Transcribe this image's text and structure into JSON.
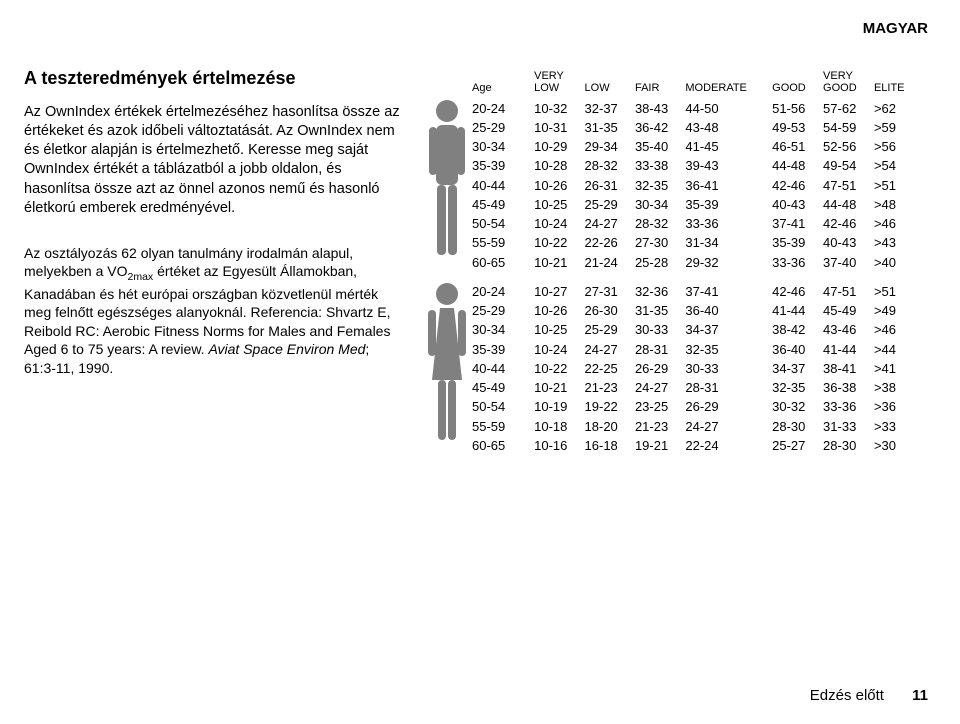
{
  "lang_header": "MAGYAR",
  "title": "A teszteredmények értelmezése",
  "para1": "Az OwnIndex értékek értelmezéséhez hasonlítsa össze az értékeket és azok időbeli változtatását. Az OwnIndex nem és életkor alapján is értelmezhető. Keresse meg saját OwnIndex értékét a táblázatból a jobb oldalon, és hasonlítsa össze azt az önnel azonos nemű és hasonló életkorú emberek eredményével.",
  "para2_a": "Az osztályozás 62 olyan tanulmány irodalmán alapul, melyekben a VO",
  "para2_sub": "2max",
  "para2_b": " értéket az Egyesült Államokban, Kanadában és hét európai országban közvetlenül mérték meg felnőtt egészséges alanyoknál. Referencia: Shvartz E, Reibold RC: Aerobic Fitness Norms for Males and Females Aged 6 to 75 years: A review. ",
  "para2_i": "Aviat Space Environ Med",
  "para2_c": "; 61:3-11, 1990.",
  "headers": [
    "Age",
    "VERY\nLOW",
    "LOW",
    "FAIR",
    "MODERATE",
    "GOOD",
    "VERY\nGOOD",
    "ELITE"
  ],
  "male_rows": [
    [
      "20-24",
      "10-32",
      "32-37",
      "38-43",
      "44-50",
      "51-56",
      "57-62",
      ">62"
    ],
    [
      "25-29",
      "10-31",
      "31-35",
      "36-42",
      "43-48",
      "49-53",
      "54-59",
      ">59"
    ],
    [
      "30-34",
      "10-29",
      "29-34",
      "35-40",
      "41-45",
      "46-51",
      "52-56",
      ">56"
    ],
    [
      "35-39",
      "10-28",
      "28-32",
      "33-38",
      "39-43",
      "44-48",
      "49-54",
      ">54"
    ],
    [
      "40-44",
      "10-26",
      "26-31",
      "32-35",
      "36-41",
      "42-46",
      "47-51",
      ">51"
    ],
    [
      "45-49",
      "10-25",
      "25-29",
      "30-34",
      "35-39",
      "40-43",
      "44-48",
      ">48"
    ],
    [
      "50-54",
      "10-24",
      "24-27",
      "28-32",
      "33-36",
      "37-41",
      "42-46",
      ">46"
    ],
    [
      "55-59",
      "10-22",
      "22-26",
      "27-30",
      "31-34",
      "35-39",
      "40-43",
      ">43"
    ],
    [
      "60-65",
      "10-21",
      "21-24",
      "25-28",
      "29-32",
      "33-36",
      "37-40",
      ">40"
    ]
  ],
  "female_rows": [
    [
      "20-24",
      "10-27",
      "27-31",
      "32-36",
      "37-41",
      "42-46",
      "47-51",
      ">51"
    ],
    [
      "25-29",
      "10-26",
      "26-30",
      "31-35",
      "36-40",
      "41-44",
      "45-49",
      ">49"
    ],
    [
      "30-34",
      "10-25",
      "25-29",
      "30-33",
      "34-37",
      "38-42",
      "43-46",
      ">46"
    ],
    [
      "35-39",
      "10-24",
      "24-27",
      "28-31",
      "32-35",
      "36-40",
      "41-44",
      ">44"
    ],
    [
      "40-44",
      "10-22",
      "22-25",
      "26-29",
      "30-33",
      "34-37",
      "38-41",
      ">41"
    ],
    [
      "45-49",
      "10-21",
      "21-23",
      "24-27",
      "28-31",
      "32-35",
      "36-38",
      ">38"
    ],
    [
      "50-54",
      "10-19",
      "19-22",
      "23-25",
      "26-29",
      "30-32",
      "33-36",
      ">36"
    ],
    [
      "55-59",
      "10-18",
      "18-20",
      "21-23",
      "24-27",
      "28-30",
      "31-33",
      ">33"
    ],
    [
      "60-65",
      "10-16",
      "16-18",
      "19-21",
      "22-24",
      "25-27",
      "28-30",
      ">30"
    ]
  ],
  "footer_label": "Edzés előtt",
  "footer_page": "11"
}
